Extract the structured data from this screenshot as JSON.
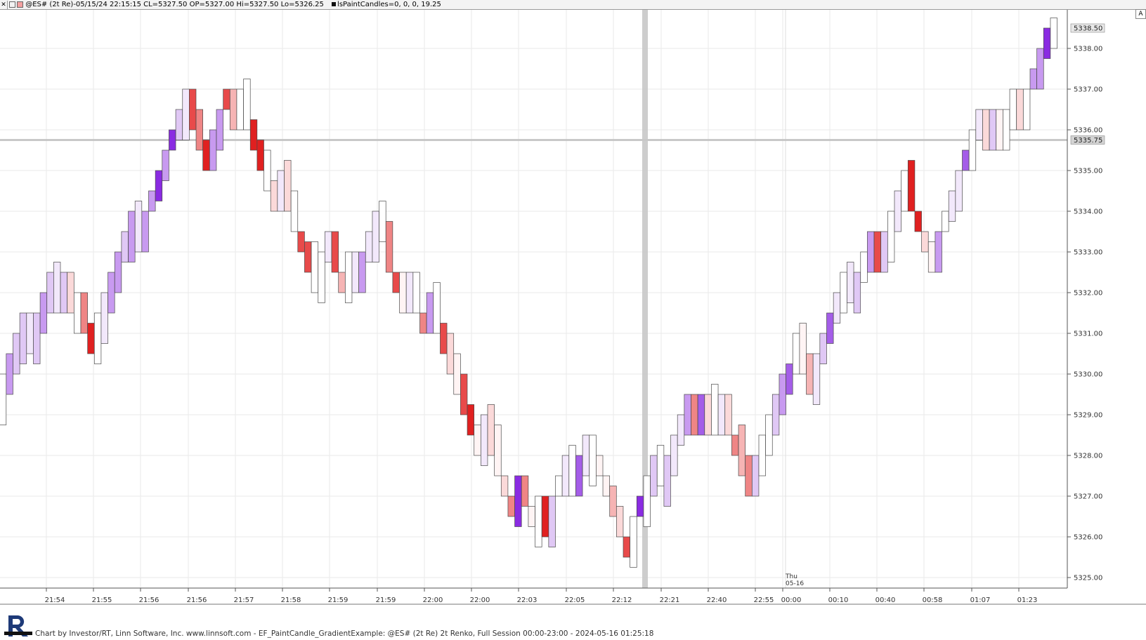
{
  "header": {
    "symbol_info": "@ES# (2t Re)-05/15/24 22:15:15 CL=5327.50 OP=5327.00 Hi=5327.50 Lo=5326.25",
    "indicator_info": "lsPaintCandles=0, 0, 0, 19.25"
  },
  "footer": {
    "credit": "Chart by Investor/RT, Linn Software, Inc. www.linnsoft.com - EF_PaintCandle_GradientExample: @ES# (2t Re) 2t Renko, Full Session 00:00-23:00 - 2024-05-16 01:25:18"
  },
  "toolbar": {
    "corner_button": "A"
  },
  "colors": {
    "up_gradient": [
      "#ffffff",
      "#f2e8fb",
      "#e0c8f5",
      "#c89af0",
      "#a45de8",
      "#8a2be2"
    ],
    "down_gradient": [
      "#fff4f4",
      "#fbd9d9",
      "#f6b4b4",
      "#ef8585",
      "#e84a4a",
      "#e02020"
    ],
    "grid": "#eaeaea",
    "crosshair": "#c8c8c8"
  },
  "chart_data": {
    "type": "renko",
    "brick_size_ticks": 2,
    "tick_size": 0.25,
    "ylim": [
      5325.0,
      5338.5
    ],
    "y_ticks": [
      "5325.00",
      "5326.00",
      "5327.00",
      "5328.00",
      "5329.00",
      "5330.00",
      "5331.00",
      "5332.00",
      "5333.00",
      "5334.00",
      "5335.00",
      "5336.00",
      "5337.00",
      "5338.00"
    ],
    "price_markers": [
      "5338.50",
      "5335.75"
    ],
    "x_ticks": [
      "21:54",
      "21:55",
      "21:56",
      "21:56",
      "21:57",
      "21:58",
      "21:59",
      "21:59",
      "22:00",
      "22:00",
      "22:03",
      "22:05",
      "22:12",
      "22:21",
      "22:40",
      "22:55",
      "00:00",
      "00:10",
      "00:40",
      "00:58",
      "01:07",
      "01:23"
    ],
    "session_marker": {
      "day": "Thu",
      "date": "05-16"
    },
    "bricks": [
      {
        "o": 5328.75,
        "c": 5330.0,
        "d": "up",
        "s": 0
      },
      {
        "o": 5329.5,
        "c": 5330.5,
        "d": "up",
        "s": 3
      },
      {
        "o": 5330.0,
        "c": 5331.0,
        "d": "up",
        "s": 2
      },
      {
        "o": 5330.25,
        "c": 5331.5,
        "d": "up",
        "s": 2
      },
      {
        "o": 5330.5,
        "c": 5331.5,
        "d": "up",
        "s": 1
      },
      {
        "o": 5330.25,
        "c": 5331.5,
        "d": "up",
        "s": 2
      },
      {
        "o": 5331.0,
        "c": 5332.0,
        "d": "up",
        "s": 3
      },
      {
        "o": 5331.5,
        "c": 5332.5,
        "d": "up",
        "s": 2
      },
      {
        "o": 5331.5,
        "c": 5332.75,
        "d": "up",
        "s": 1
      },
      {
        "o": 5332.5,
        "c": 5331.5,
        "d": "up",
        "s": 2
      },
      {
        "o": 5332.5,
        "c": 5331.5,
        "d": "dn",
        "s": 1
      },
      {
        "o": 5331.0,
        "c": 5332.0,
        "d": "up",
        "s": 0
      },
      {
        "o": 5332.0,
        "c": 5331.0,
        "d": "dn",
        "s": 3
      },
      {
        "o": 5331.25,
        "c": 5330.5,
        "d": "dn",
        "s": 5
      },
      {
        "o": 5331.5,
        "c": 5330.25,
        "d": "up",
        "s": 0
      },
      {
        "o": 5330.75,
        "c": 5332.0,
        "d": "up",
        "s": 1
      },
      {
        "o": 5331.5,
        "c": 5332.5,
        "d": "up",
        "s": 3
      },
      {
        "o": 5332.0,
        "c": 5333.0,
        "d": "up",
        "s": 3
      },
      {
        "o": 5332.75,
        "c": 5333.5,
        "d": "up",
        "s": 2
      },
      {
        "o": 5332.75,
        "c": 5334.0,
        "d": "up",
        "s": 3
      },
      {
        "o": 5333.0,
        "c": 5334.25,
        "d": "up",
        "s": 1
      },
      {
        "o": 5333.0,
        "c": 5334.0,
        "d": "up",
        "s": 3
      },
      {
        "o": 5334.0,
        "c": 5334.5,
        "d": "up",
        "s": 3
      },
      {
        "o": 5334.25,
        "c": 5335.0,
        "d": "up",
        "s": 5
      },
      {
        "o": 5334.75,
        "c": 5335.5,
        "d": "up",
        "s": 3
      },
      {
        "o": 5335.5,
        "c": 5336.0,
        "d": "up",
        "s": 5
      },
      {
        "o": 5335.75,
        "c": 5336.5,
        "d": "up",
        "s": 2
      },
      {
        "o": 5335.75,
        "c": 5337.0,
        "d": "up",
        "s": 1
      },
      {
        "o": 5337.0,
        "c": 5336.0,
        "d": "dn",
        "s": 4
      },
      {
        "o": 5336.5,
        "c": 5335.5,
        "d": "dn",
        "s": 3
      },
      {
        "o": 5335.75,
        "c": 5335.0,
        "d": "dn",
        "s": 5
      },
      {
        "o": 5335.0,
        "c": 5336.0,
        "d": "up",
        "s": 3
      },
      {
        "o": 5335.5,
        "c": 5336.5,
        "d": "up",
        "s": 3
      },
      {
        "o": 5337.0,
        "c": 5336.5,
        "d": "dn",
        "s": 4
      },
      {
        "o": 5337.0,
        "c": 5336.0,
        "d": "dn",
        "s": 2
      },
      {
        "o": 5336.0,
        "c": 5337.0,
        "d": "up",
        "s": 0
      },
      {
        "o": 5337.25,
        "c": 5336.0,
        "d": "up",
        "s": 0
      },
      {
        "o": 5336.25,
        "c": 5335.5,
        "d": "dn",
        "s": 5
      },
      {
        "o": 5335.75,
        "c": 5335.0,
        "d": "dn",
        "s": 5
      },
      {
        "o": 5334.5,
        "c": 5335.5,
        "d": "up",
        "s": 0
      },
      {
        "o": 5334.75,
        "c": 5334.0,
        "d": "dn",
        "s": 1
      },
      {
        "o": 5334.0,
        "c": 5335.0,
        "d": "up",
        "s": 1
      },
      {
        "o": 5335.25,
        "c": 5334.0,
        "d": "dn",
        "s": 1
      },
      {
        "o": 5334.5,
        "c": 5333.5,
        "d": "up",
        "s": 0
      },
      {
        "o": 5333.5,
        "c": 5333.0,
        "d": "dn",
        "s": 4
      },
      {
        "o": 5333.25,
        "c": 5332.5,
        "d": "dn",
        "s": 4
      },
      {
        "o": 5333.25,
        "c": 5332.0,
        "d": "up",
        "s": 0
      },
      {
        "o": 5331.75,
        "c": 5333.0,
        "d": "up",
        "s": 0
      },
      {
        "o": 5332.75,
        "c": 5333.5,
        "d": "up",
        "s": 1
      },
      {
        "o": 5333.5,
        "c": 5332.5,
        "d": "dn",
        "s": 4
      },
      {
        "o": 5332.5,
        "c": 5332.0,
        "d": "dn",
        "s": 2
      },
      {
        "o": 5333.0,
        "c": 5331.75,
        "d": "up",
        "s": 0
      },
      {
        "o": 5332.0,
        "c": 5333.0,
        "d": "up",
        "s": 1
      },
      {
        "o": 5333.0,
        "c": 5332.0,
        "d": "up",
        "s": 3
      },
      {
        "o": 5332.75,
        "c": 5333.5,
        "d": "up",
        "s": 1
      },
      {
        "o": 5332.75,
        "c": 5334.0,
        "d": "up",
        "s": 1
      },
      {
        "o": 5333.25,
        "c": 5334.25,
        "d": "up",
        "s": 0
      },
      {
        "o": 5333.75,
        "c": 5332.5,
        "d": "dn",
        "s": 3
      },
      {
        "o": 5332.5,
        "c": 5332.0,
        "d": "dn",
        "s": 4
      },
      {
        "o": 5332.5,
        "c": 5331.5,
        "d": "dn",
        "s": 0
      },
      {
        "o": 5331.5,
        "c": 5332.5,
        "d": "up",
        "s": 1
      },
      {
        "o": 5332.5,
        "c": 5331.5,
        "d": "up",
        "s": 0
      },
      {
        "o": 5331.5,
        "c": 5331.0,
        "d": "dn",
        "s": 3
      },
      {
        "o": 5331.0,
        "c": 5332.0,
        "d": "up",
        "s": 3
      },
      {
        "o": 5332.25,
        "c": 5331.0,
        "d": "up",
        "s": 0
      },
      {
        "o": 5331.25,
        "c": 5330.5,
        "d": "dn",
        "s": 4
      },
      {
        "o": 5331.0,
        "c": 5330.0,
        "d": "dn",
        "s": 1
      },
      {
        "o": 5330.5,
        "c": 5329.5,
        "d": "dn",
        "s": 0
      },
      {
        "o": 5330.0,
        "c": 5329.0,
        "d": "dn",
        "s": 4
      },
      {
        "o": 5329.25,
        "c": 5328.5,
        "d": "dn",
        "s": 5
      },
      {
        "o": 5328.75,
        "c": 5328.0,
        "d": "dn",
        "s": 0
      },
      {
        "o": 5327.75,
        "c": 5329.0,
        "d": "up",
        "s": 1
      },
      {
        "o": 5329.25,
        "c": 5328.0,
        "d": "dn",
        "s": 1
      },
      {
        "o": 5328.75,
        "c": 5327.5,
        "d": "dn",
        "s": 0
      },
      {
        "o": 5327.5,
        "c": 5327.0,
        "d": "dn",
        "s": 1
      },
      {
        "o": 5327.0,
        "c": 5326.5,
        "d": "dn",
        "s": 3
      },
      {
        "o": 5326.25,
        "c": 5327.5,
        "d": "up",
        "s": 5
      },
      {
        "o": 5327.5,
        "c": 5326.75,
        "d": "dn",
        "s": 3
      },
      {
        "o": 5326.75,
        "c": 5326.25,
        "d": "dn",
        "s": 0
      },
      {
        "o": 5325.75,
        "c": 5327.0,
        "d": "up",
        "s": 0
      },
      {
        "o": 5327.0,
        "c": 5326.0,
        "d": "dn",
        "s": 5
      },
      {
        "o": 5325.75,
        "c": 5327.0,
        "d": "up",
        "s": 2
      },
      {
        "o": 5327.0,
        "c": 5327.5,
        "d": "up",
        "s": 0
      },
      {
        "o": 5327.0,
        "c": 5328.0,
        "d": "up",
        "s": 1
      },
      {
        "o": 5328.25,
        "c": 5327.0,
        "d": "up",
        "s": 0
      },
      {
        "o": 5327.0,
        "c": 5328.0,
        "d": "up",
        "s": 4
      },
      {
        "o": 5327.5,
        "c": 5328.5,
        "d": "up",
        "s": 1
      },
      {
        "o": 5327.25,
        "c": 5328.5,
        "d": "up",
        "s": 0
      },
      {
        "o": 5328.0,
        "c": 5327.5,
        "d": "dn",
        "s": 0
      },
      {
        "o": 5327.5,
        "c": 5327.0,
        "d": "dn",
        "s": 0
      },
      {
        "o": 5327.25,
        "c": 5326.5,
        "d": "dn",
        "s": 2
      },
      {
        "o": 5326.75,
        "c": 5326.0,
        "d": "dn",
        "s": 1
      },
      {
        "o": 5326.0,
        "c": 5325.5,
        "d": "dn",
        "s": 4
      },
      {
        "o": 5325.25,
        "c": 5326.5,
        "d": "up",
        "s": 0
      },
      {
        "o": 5326.5,
        "c": 5327.0,
        "d": "up",
        "s": 5
      },
      {
        "o": 5326.25,
        "c": 5327.5,
        "d": "up",
        "s": 0
      },
      {
        "o": 5327.0,
        "c": 5328.0,
        "d": "up",
        "s": 2
      },
      {
        "o": 5327.25,
        "c": 5328.25,
        "d": "up",
        "s": 0
      },
      {
        "o": 5326.75,
        "c": 5328.0,
        "d": "up",
        "s": 2
      },
      {
        "o": 5327.5,
        "c": 5328.5,
        "d": "up",
        "s": 1
      },
      {
        "o": 5328.25,
        "c": 5329.0,
        "d": "up",
        "s": 1
      },
      {
        "o": 5328.5,
        "c": 5329.5,
        "d": "up",
        "s": 3
      },
      {
        "o": 5329.5,
        "c": 5328.5,
        "d": "dn",
        "s": 3
      },
      {
        "o": 5328.5,
        "c": 5329.5,
        "d": "up",
        "s": 4
      },
      {
        "o": 5329.5,
        "c": 5328.5,
        "d": "dn",
        "s": 1
      },
      {
        "o": 5328.5,
        "c": 5329.75,
        "d": "up",
        "s": 0
      },
      {
        "o": 5329.5,
        "c": 5328.5,
        "d": "up",
        "s": 1
      },
      {
        "o": 5329.5,
        "c": 5328.5,
        "d": "dn",
        "s": 1
      },
      {
        "o": 5328.5,
        "c": 5328.0,
        "d": "dn",
        "s": 3
      },
      {
        "o": 5328.75,
        "c": 5327.5,
        "d": "dn",
        "s": 2
      },
      {
        "o": 5328.0,
        "c": 5327.0,
        "d": "dn",
        "s": 3
      },
      {
        "o": 5327.0,
        "c": 5328.0,
        "d": "up",
        "s": 2
      },
      {
        "o": 5327.5,
        "c": 5328.5,
        "d": "up",
        "s": 0
      },
      {
        "o": 5328.0,
        "c": 5329.0,
        "d": "up",
        "s": 0
      },
      {
        "o": 5328.5,
        "c": 5329.5,
        "d": "up",
        "s": 2
      },
      {
        "o": 5329.0,
        "c": 5330.0,
        "d": "up",
        "s": 3
      },
      {
        "o": 5329.5,
        "c": 5330.25,
        "d": "up",
        "s": 4
      },
      {
        "o": 5330.0,
        "c": 5331.0,
        "d": "up",
        "s": 0
      },
      {
        "o": 5331.25,
        "c": 5330.0,
        "d": "dn",
        "s": 0
      },
      {
        "o": 5330.5,
        "c": 5329.5,
        "d": "dn",
        "s": 2
      },
      {
        "o": 5329.25,
        "c": 5330.5,
        "d": "up",
        "s": 1
      },
      {
        "o": 5330.25,
        "c": 5331.0,
        "d": "up",
        "s": 2
      },
      {
        "o": 5330.75,
        "c": 5331.5,
        "d": "up",
        "s": 4
      },
      {
        "o": 5331.25,
        "c": 5332.0,
        "d": "up",
        "s": 1
      },
      {
        "o": 5331.5,
        "c": 5332.5,
        "d": "up",
        "s": 0
      },
      {
        "o": 5331.75,
        "c": 5332.75,
        "d": "up",
        "s": 1
      },
      {
        "o": 5331.5,
        "c": 5332.5,
        "d": "up",
        "s": 2
      },
      {
        "o": 5332.25,
        "c": 5333.0,
        "d": "up",
        "s": 0
      },
      {
        "o": 5332.5,
        "c": 5333.5,
        "d": "up",
        "s": 3
      },
      {
        "o": 5333.5,
        "c": 5332.5,
        "d": "dn",
        "s": 4
      },
      {
        "o": 5332.5,
        "c": 5333.5,
        "d": "up",
        "s": 2
      },
      {
        "o": 5332.75,
        "c": 5334.0,
        "d": "up",
        "s": 0
      },
      {
        "o": 5333.5,
        "c": 5334.5,
        "d": "up",
        "s": 1
      },
      {
        "o": 5334.0,
        "c": 5335.0,
        "d": "up",
        "s": 0
      },
      {
        "o": 5335.25,
        "c": 5334.0,
        "d": "dn",
        "s": 5
      },
      {
        "o": 5334.0,
        "c": 5333.5,
        "d": "dn",
        "s": 5
      },
      {
        "o": 5333.5,
        "c": 5333.0,
        "d": "dn",
        "s": 1
      },
      {
        "o": 5333.25,
        "c": 5332.5,
        "d": "dn",
        "s": 0
      },
      {
        "o": 5332.5,
        "c": 5333.5,
        "d": "up",
        "s": 3
      },
      {
        "o": 5333.5,
        "c": 5334.0,
        "d": "up",
        "s": 0
      },
      {
        "o": 5333.75,
        "c": 5334.5,
        "d": "up",
        "s": 1
      },
      {
        "o": 5334.0,
        "c": 5335.0,
        "d": "up",
        "s": 1
      },
      {
        "o": 5335.0,
        "c": 5335.5,
        "d": "up",
        "s": 4
      },
      {
        "o": 5335.0,
        "c": 5336.0,
        "d": "up",
        "s": 0
      },
      {
        "o": 5335.75,
        "c": 5336.5,
        "d": "up",
        "s": 1
      },
      {
        "o": 5336.5,
        "c": 5335.5,
        "d": "dn",
        "s": 1
      },
      {
        "o": 5335.5,
        "c": 5336.5,
        "d": "up",
        "s": 2
      },
      {
        "o": 5336.5,
        "c": 5335.5,
        "d": "dn",
        "s": 0
      },
      {
        "o": 5335.5,
        "c": 5336.5,
        "d": "up",
        "s": 0
      },
      {
        "o": 5336.0,
        "c": 5337.0,
        "d": "up",
        "s": 0
      },
      {
        "o": 5337.0,
        "c": 5336.0,
        "d": "dn",
        "s": 1
      },
      {
        "o": 5336.0,
        "c": 5337.0,
        "d": "up",
        "s": 0
      },
      {
        "o": 5337.0,
        "c": 5337.5,
        "d": "up",
        "s": 3
      },
      {
        "o": 5337.0,
        "c": 5338.0,
        "d": "up",
        "s": 3
      },
      {
        "o": 5337.75,
        "c": 5338.5,
        "d": "up",
        "s": 5
      },
      {
        "o": 5338.0,
        "c": 5338.75,
        "d": "up",
        "s": 0
      }
    ]
  }
}
